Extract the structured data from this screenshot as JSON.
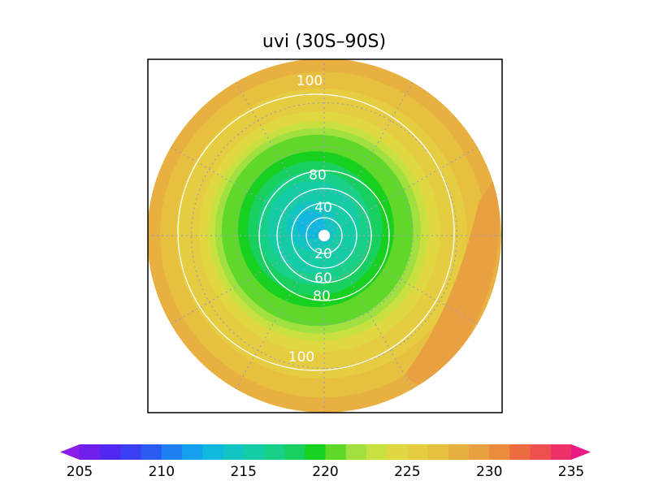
{
  "chart_data": {
    "type": "heatmap",
    "projection": "south-polar-stereographic",
    "title": "uvi (30S–90S)",
    "latitude_range": [
      -90,
      -30
    ],
    "gridlines": true,
    "contour_levels": [
      20,
      40,
      60,
      80,
      100
    ],
    "contour_labels": [
      {
        "text": "100",
        "level": 100
      },
      {
        "text": "80",
        "level": 80
      },
      {
        "text": "40",
        "level": 40
      },
      {
        "text": "20",
        "level": 20
      },
      {
        "text": "60",
        "level": 60
      },
      {
        "text": "80",
        "level": 80
      },
      {
        "text": "100",
        "level": 100
      }
    ],
    "colorbar": {
      "min": 205,
      "max": 235,
      "step": 1.25,
      "extend": "both",
      "tick_labels": [
        "205",
        "210",
        "215",
        "220",
        "225",
        "230",
        "235"
      ],
      "colors": [
        "#8c1ce8",
        "#7020ee",
        "#5028f2",
        "#3a3ef4",
        "#2a5cf4",
        "#1e80f2",
        "#14a0ee",
        "#10b8e0",
        "#12c4c4",
        "#14cca8",
        "#18d088",
        "#18d060",
        "#18d020",
        "#60d82a",
        "#a0e040",
        "#c8e040",
        "#e0d840",
        "#e6cc40",
        "#e8c040",
        "#e8b040",
        "#e8a040",
        "#ea8c3c",
        "#ec6c40",
        "#ee5050",
        "#ee3068",
        "#e81c84"
      ]
    },
    "field_description": "minimum near pole (~213), rising to ~228–229 at 30S"
  }
}
